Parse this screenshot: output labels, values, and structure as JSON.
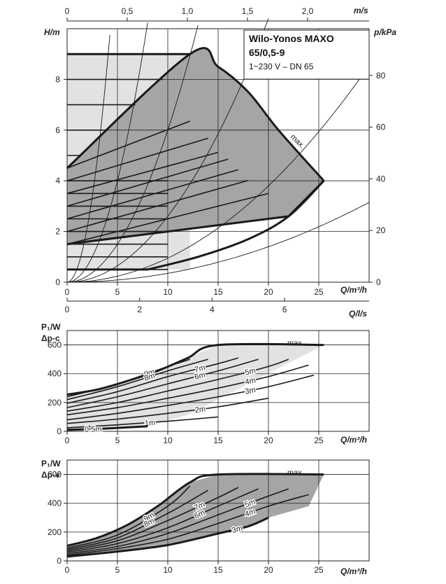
{
  "chart_data": [
    {
      "type": "line",
      "name_box": {
        "line1": "Wilo-Yonos MAXO",
        "line2": "65/0,5-9",
        "line3": "1~230 V – DN 65"
      },
      "xlabel": "Q/m³/h",
      "ylabel": "H/m",
      "ylabel_right": "p/kPa",
      "top_axis_label": "m/s",
      "xlim": [
        0,
        30
      ],
      "ylim": [
        0,
        10
      ],
      "x_ticks": [
        "0",
        "5",
        "10",
        "15",
        "20",
        "25"
      ],
      "y_ticks": [
        "0",
        "2",
        "4",
        "6",
        "8"
      ],
      "right_ticks": [
        "0",
        "20",
        "40",
        "60",
        "80"
      ],
      "top_ticks": [
        "0",
        "0,5",
        "1,0",
        "1,5",
        "2,0"
      ],
      "curve_label": "max.",
      "envelope_max": [
        [
          0,
          4.5
        ],
        [
          12.2,
          9.0
        ],
        [
          15,
          8.5
        ],
        [
          18,
          7.5
        ],
        [
          21,
          6.0
        ],
        [
          25.5,
          4.0
        ]
      ],
      "envelope_min": [
        [
          0,
          1.5
        ],
        [
          20,
          2.5
        ],
        [
          22,
          2.6
        ],
        [
          25.5,
          4.0
        ]
      ],
      "constant_head_lines": [
        0.5,
        1,
        1.5,
        2,
        2.5,
        3,
        3.5,
        4,
        5,
        6,
        7,
        8,
        9
      ],
      "system_curves_k": [
        0.54,
        0.16,
        0.06,
        0.026,
        0.0095,
        0.0035
      ]
    },
    {
      "type": "line",
      "ylabel": "P₁/W",
      "ylabel2": "Δp-c",
      "xlabel_top": "Q/l/s",
      "xlabel": "Q/m³/h",
      "xlim": [
        0,
        30
      ],
      "ylim": [
        0,
        700
      ],
      "x_ticks": [
        "0",
        "5",
        "10",
        "15",
        "20",
        "25"
      ],
      "y_ticks": [
        "0",
        "200",
        "400",
        "600"
      ],
      "top_ticks": [
        "0",
        "2",
        "4",
        "6"
      ],
      "series": [
        {
          "name": "max.",
          "x": [
            0,
            3,
            6,
            9,
            12,
            15,
            25.5
          ],
          "y": [
            255,
            290,
            350,
            420,
            510,
            600,
            600
          ]
        },
        {
          "name": "9m",
          "x": [
            0,
            5,
            10,
            12.2
          ],
          "y": [
            240,
            330,
            450,
            500
          ]
        },
        {
          "name": "8m",
          "x": [
            0,
            5,
            10,
            14
          ],
          "y": [
            220,
            310,
            420,
            500
          ]
        },
        {
          "name": "7m",
          "x": [
            0,
            5,
            10,
            15,
            17
          ],
          "y": [
            195,
            275,
            380,
            470,
            510
          ]
        },
        {
          "name": "6m",
          "x": [
            0,
            5,
            10,
            15,
            19
          ],
          "y": [
            165,
            240,
            330,
            420,
            500
          ]
        },
        {
          "name": "5m",
          "x": [
            0,
            5,
            10,
            15,
            20,
            22
          ],
          "y": [
            140,
            200,
            280,
            360,
            450,
            500
          ]
        },
        {
          "name": "4m",
          "x": [
            0,
            5,
            10,
            15,
            20,
            24
          ],
          "y": [
            115,
            165,
            230,
            300,
            380,
            460
          ]
        },
        {
          "name": "3m",
          "x": [
            0,
            5,
            10,
            15,
            20,
            24.5
          ],
          "y": [
            80,
            125,
            180,
            240,
            310,
            390
          ]
        },
        {
          "name": "2m",
          "x": [
            0,
            5,
            10,
            15,
            20
          ],
          "y": [
            55,
            85,
            125,
            170,
            230
          ]
        },
        {
          "name": "1m",
          "x": [
            0,
            5,
            10,
            15
          ],
          "y": [
            25,
            45,
            70,
            100
          ]
        },
        {
          "name": "0.5m",
          "x": [
            0,
            4,
            8
          ],
          "y": [
            10,
            20,
            35
          ]
        }
      ]
    },
    {
      "type": "line",
      "ylabel": "P₁/W",
      "ylabel2": "Δp-v",
      "xlabel": "Q/m³/h",
      "xlim": [
        0,
        30
      ],
      "ylim": [
        0,
        700
      ],
      "x_ticks": [
        "0",
        "5",
        "10",
        "15",
        "20",
        "25"
      ],
      "y_ticks": [
        "0",
        "200",
        "400",
        "600"
      ],
      "series": [
        {
          "name": "max.",
          "x": [
            0,
            3,
            6,
            9,
            12.2,
            15,
            25.5
          ],
          "y": [
            105,
            160,
            250,
            380,
            545,
            600,
            600
          ]
        },
        {
          "name": "9m",
          "x": [
            0,
            5,
            10,
            12.2
          ],
          "y": [
            90,
            180,
            380,
            520
          ]
        },
        {
          "name": "8m",
          "x": [
            0,
            5,
            10,
            14
          ],
          "y": [
            80,
            160,
            330,
            490
          ]
        },
        {
          "name": "7m",
          "x": [
            0,
            5,
            10,
            15,
            17
          ],
          "y": [
            70,
            140,
            280,
            440,
            510
          ]
        },
        {
          "name": "6m",
          "x": [
            0,
            5,
            10,
            15,
            19
          ],
          "y": [
            60,
            120,
            230,
            380,
            500
          ]
        },
        {
          "name": "5m",
          "x": [
            0,
            5,
            10,
            15,
            20,
            22
          ],
          "y": [
            50,
            100,
            190,
            320,
            450,
            500
          ]
        },
        {
          "name": "4m",
          "x": [
            0,
            5,
            10,
            15,
            20,
            24
          ],
          "y": [
            40,
            85,
            150,
            260,
            380,
            460
          ]
        },
        {
          "name": "3m",
          "x": [
            0,
            5,
            10,
            15,
            18,
            20
          ],
          "y": [
            30,
            65,
            110,
            190,
            240,
            300
          ]
        }
      ]
    }
  ]
}
